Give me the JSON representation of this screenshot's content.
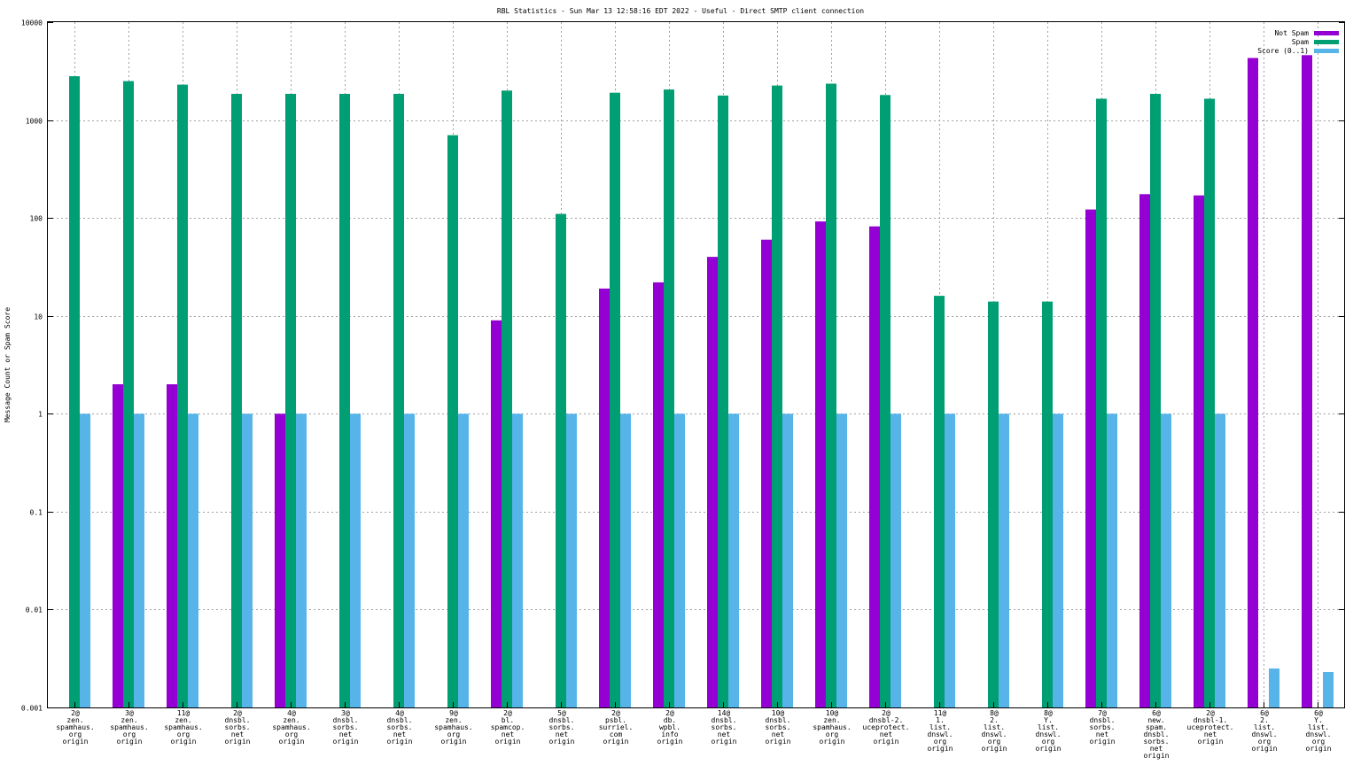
{
  "chart_data": {
    "type": "bar",
    "scale": "log",
    "title": "RBL Statistics - Sun Mar 13 12:58:16 EDT 2022 - Useful - Direct SMTP client connection",
    "xlabel": "",
    "ylabel": "Message Count or Spam Score",
    "ylim": [
      0.001,
      10000
    ],
    "yticks": [
      "0.001",
      "0.01",
      "0.1",
      "1",
      "10",
      "100",
      "1000",
      "10000"
    ],
    "grid": true,
    "legend_position": "top-right",
    "categories": [
      [
        "2@",
        "zen.",
        "spamhaus.",
        "org",
        "origin"
      ],
      [
        "3@",
        "zen.",
        "spamhaus.",
        "org",
        "origin"
      ],
      [
        "11@",
        "zen.",
        "spamhaus.",
        "org",
        "origin"
      ],
      [
        "2@",
        "dnsbl.",
        "sorbs.",
        "net",
        "origin"
      ],
      [
        "4@",
        "zen.",
        "spamhaus.",
        "org",
        "origin"
      ],
      [
        "3@",
        "dnsbl.",
        "sorbs.",
        "net",
        "origin"
      ],
      [
        "4@",
        "dnsbl.",
        "sorbs.",
        "net",
        "origin"
      ],
      [
        "9@",
        "zen.",
        "spamhaus.",
        "org",
        "origin"
      ],
      [
        "2@",
        "bl.",
        "spamcop.",
        "net",
        "origin"
      ],
      [
        "5@",
        "dnsbl.",
        "sorbs.",
        "net",
        "origin"
      ],
      [
        "2@",
        "psbl.",
        "surriel.",
        "com",
        "origin"
      ],
      [
        "2@",
        "db.",
        "wpbl.",
        "info",
        "origin"
      ],
      [
        "14@",
        "dnsbl.",
        "sorbs.",
        "net",
        "origin"
      ],
      [
        "10@",
        "dnsbl.",
        "sorbs.",
        "net",
        "origin"
      ],
      [
        "10@",
        "zen.",
        "spamhaus.",
        "org",
        "origin"
      ],
      [
        "2@",
        "dnsbl-2.",
        "uceprotect.",
        "net",
        "origin"
      ],
      [
        "11@",
        "1.",
        "list.",
        "dnswl.",
        "org",
        "origin"
      ],
      [
        "8@",
        "2.",
        "list.",
        "dnswl.",
        "org",
        "origin"
      ],
      [
        "8@",
        "Y.",
        "list.",
        "dnswl.",
        "org",
        "origin"
      ],
      [
        "7@",
        "dnsbl.",
        "sorbs.",
        "net",
        "origin"
      ],
      [
        "6@",
        "new.",
        "spam.",
        "dnsbl.",
        "sorbs.",
        "net",
        "origin"
      ],
      [
        "2@",
        "dnsbl-1.",
        "uceprotect.",
        "net",
        "origin"
      ],
      [
        "6@",
        "2.",
        "list.",
        "dnswl.",
        "org",
        "origin"
      ],
      [
        "6@",
        "Y.",
        "list.",
        "dnswl.",
        "org",
        "origin"
      ]
    ],
    "series": [
      {
        "name": "Not Spam",
        "color": "#9400d3",
        "values": [
          null,
          2,
          2,
          null,
          1,
          null,
          null,
          null,
          9,
          null,
          19,
          22,
          40,
          60,
          92,
          82,
          null,
          null,
          null,
          122,
          175,
          170,
          4300,
          4600
        ]
      },
      {
        "name": "Spam",
        "color": "#009e73",
        "values": [
          2800,
          2500,
          2300,
          1850,
          1850,
          1850,
          1850,
          700,
          2000,
          110,
          1900,
          2050,
          1780,
          2250,
          2350,
          1800,
          16,
          14,
          14,
          1650,
          1850,
          1650,
          null,
          null
        ]
      },
      {
        "name": "Score (0..1)",
        "color": "#56b4e9",
        "values": [
          1,
          1,
          1,
          1,
          1,
          1,
          1,
          1,
          1,
          1,
          1,
          1,
          1,
          1,
          1,
          1,
          1,
          1,
          1,
          1,
          1,
          1,
          0.0025,
          0.0023
        ]
      }
    ]
  }
}
